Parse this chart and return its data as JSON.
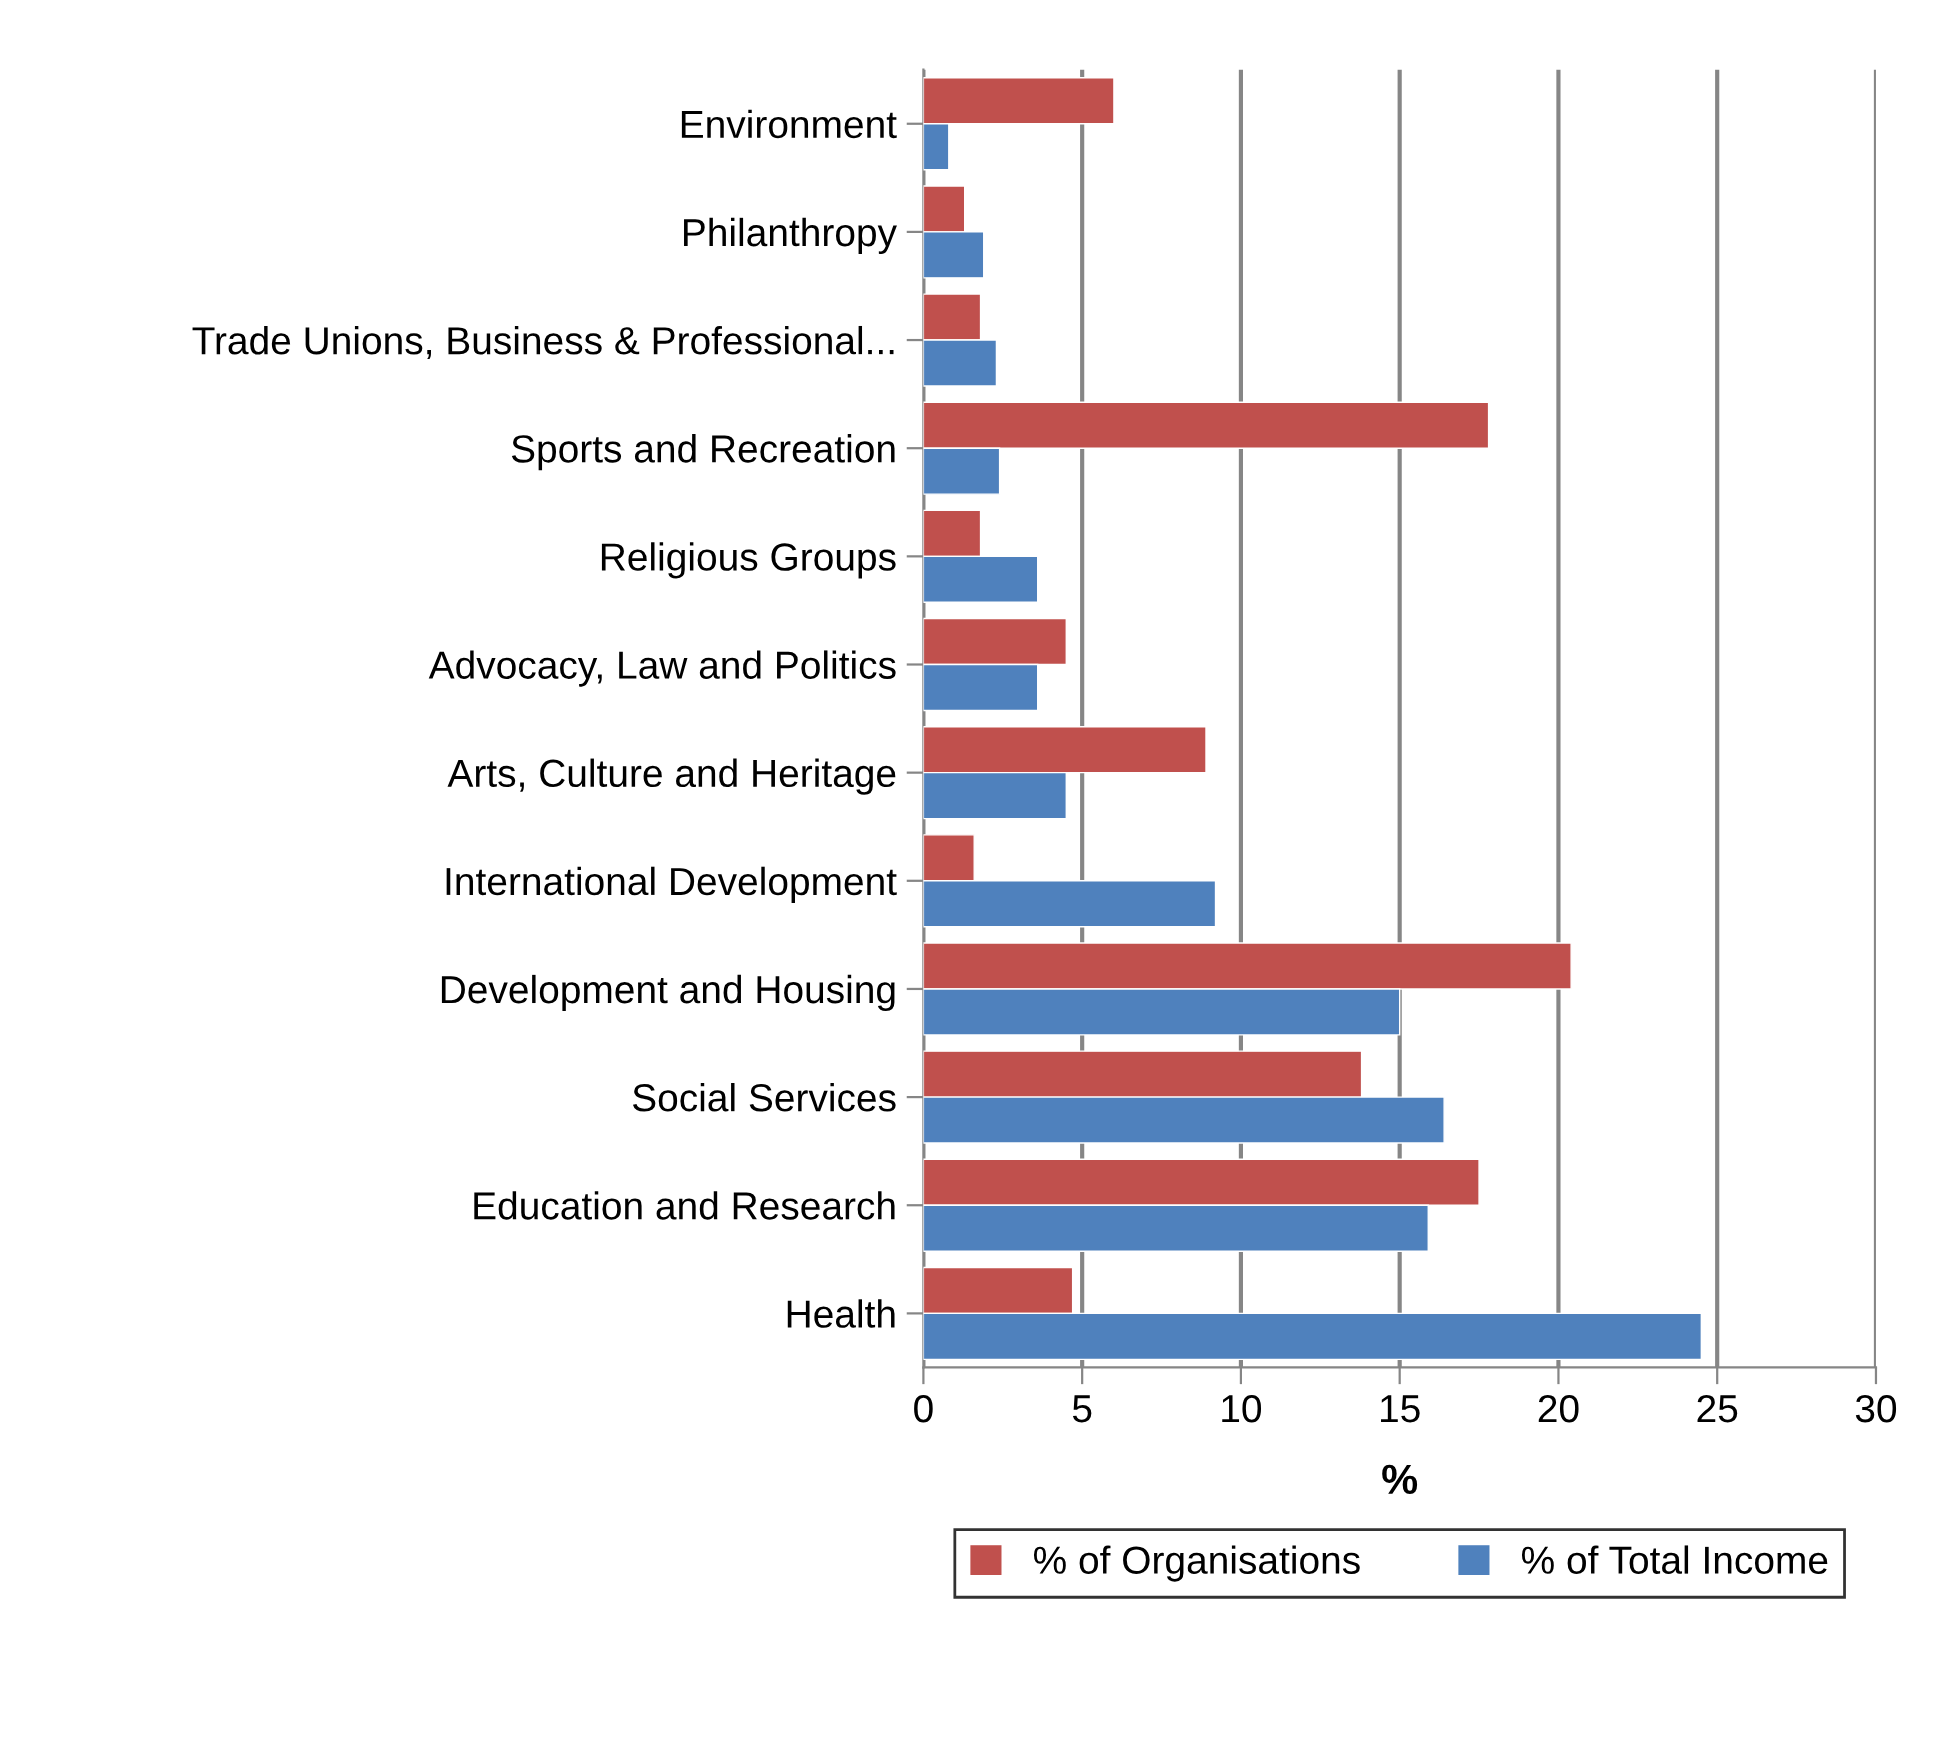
{
  "chart_data": {
    "type": "bar",
    "orientation": "horizontal",
    "xlabel": "%",
    "categories": [
      "Environment",
      "Philanthropy",
      "Trade Unions, Business & Professional...",
      "Sports and Recreation",
      "Religious Groups",
      "Advocacy, Law and Politics",
      "Arts, Culture and Heritage",
      "International Development",
      "Development and Housing",
      "Social Services",
      "Education and Research",
      "Health"
    ],
    "series": [
      {
        "name": "% of Organisations",
        "color": "#c0504d",
        "values": [
          6.0,
          1.3,
          1.8,
          17.8,
          1.8,
          4.5,
          8.9,
          1.6,
          20.4,
          13.8,
          17.5,
          4.7
        ]
      },
      {
        "name": "% of Total Income",
        "color": "#4f81bd",
        "values": [
          0.8,
          1.9,
          2.3,
          2.4,
          3.6,
          3.6,
          4.5,
          9.2,
          15.0,
          16.4,
          15.9,
          24.5
        ]
      }
    ],
    "xlim": [
      0,
      30
    ],
    "xticks": [
      0,
      5,
      10,
      15,
      20,
      25,
      30
    ],
    "grid": "x",
    "legend": "bottom"
  }
}
